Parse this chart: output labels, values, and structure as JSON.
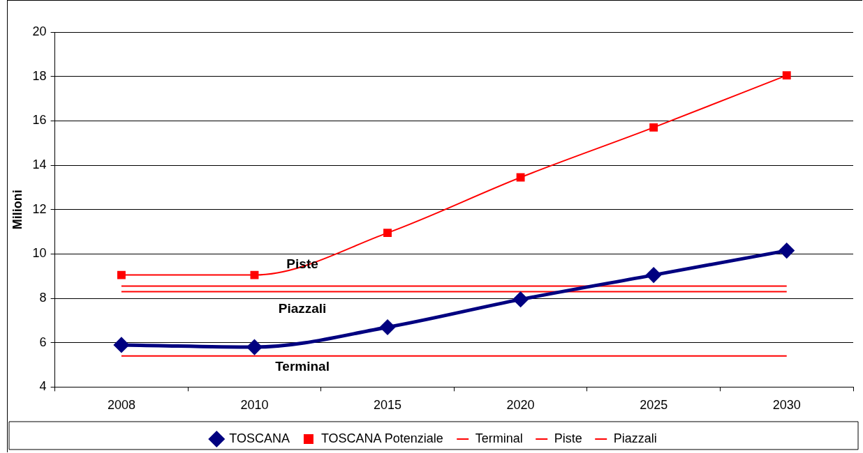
{
  "chart_data": {
    "type": "line",
    "ylabel": "Milioni",
    "categories": [
      "2008",
      "2010",
      "2015",
      "2020",
      "2025",
      "2030"
    ],
    "series": [
      {
        "name": "TOSCANA",
        "color": "#000080",
        "marker": "diamond",
        "values": [
          5.9,
          5.8,
          6.7,
          7.95,
          9.05,
          10.15
        ]
      },
      {
        "name": "TOSCANA Potenziale",
        "color": "#ff0000",
        "marker": "square",
        "values": [
          9.05,
          9.05,
          10.95,
          13.45,
          15.7,
          18.05
        ]
      },
      {
        "name": "Terminal",
        "color": "#ff0000",
        "marker": "none",
        "values": [
          5.4,
          5.4,
          5.4,
          5.4,
          5.4,
          5.4
        ]
      },
      {
        "name": "Piste",
        "color": "#ff0000",
        "marker": "none",
        "values": [
          8.55,
          8.55,
          8.55,
          8.55,
          8.55,
          8.55
        ]
      },
      {
        "name": "Piazzali",
        "color": "#ff0000",
        "marker": "none",
        "values": [
          8.3,
          8.3,
          8.3,
          8.3,
          8.3,
          8.3
        ]
      }
    ],
    "annotations": [
      "Piste",
      "Piazzali",
      "Terminal"
    ],
    "ylim": [
      4,
      20
    ],
    "yticks": [
      4,
      6,
      8,
      10,
      12,
      14,
      16,
      18,
      20
    ],
    "grid": "y",
    "legend": "bottom"
  }
}
